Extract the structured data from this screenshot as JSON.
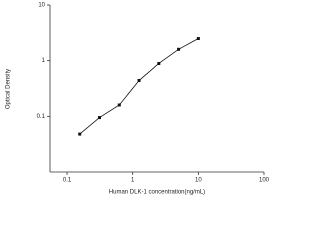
{
  "chart_data": {
    "type": "scatter",
    "log_x": true,
    "log_y": true,
    "connect": true,
    "x_label": "Human DLK-1 concentration(ng/mL)",
    "y_label": "Optical Density",
    "x": [
      0.156,
      0.312,
      0.625,
      1.25,
      2.5,
      5,
      10
    ],
    "series": [
      {
        "color": "#111111",
        "values": [
          0.048,
          0.095,
          0.16,
          0.44,
          0.89,
          1.6,
          2.5
        ]
      }
    ],
    "xlim": [
      0.055,
      100
    ],
    "xticks": [
      0.1,
      1,
      10,
      100
    ],
    "ylim": [
      0.01,
      10
    ],
    "yticks": [
      0.1,
      1,
      10
    ]
  }
}
